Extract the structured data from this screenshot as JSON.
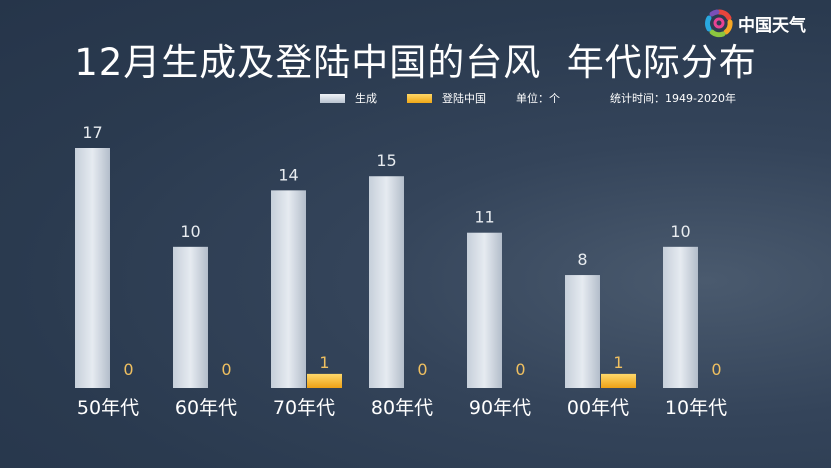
{
  "logo": {
    "text": "中国天气"
  },
  "chart_data": {
    "type": "bar",
    "title": "12月生成及登陆中国的台风  年代际分布",
    "categories": [
      "50年代",
      "60年代",
      "70年代",
      "80年代",
      "90年代",
      "00年代",
      "10年代"
    ],
    "series": [
      {
        "name": "生成",
        "values": [
          17,
          10,
          14,
          15,
          11,
          8,
          10
        ],
        "color": "#d5dce5"
      },
      {
        "name": "登陆中国",
        "values": [
          0,
          0,
          1,
          0,
          0,
          1,
          0
        ],
        "color": "#f5b82a"
      }
    ],
    "unit_note": "单位：个",
    "period_note": "统计时间：1949-2020年",
    "ylim": [
      0,
      17
    ],
    "grid": false,
    "legend": "top-right",
    "label_color_landfall": "#f0c060"
  }
}
